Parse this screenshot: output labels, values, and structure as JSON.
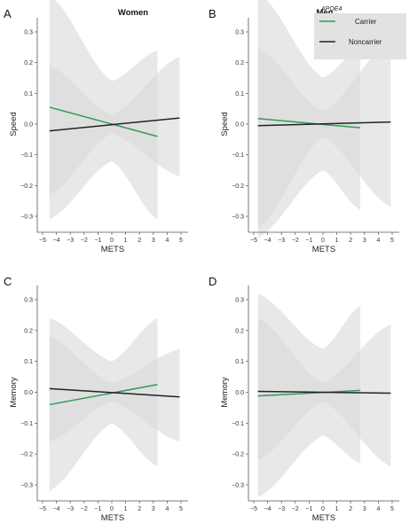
{
  "legend": {
    "title": "APOE4",
    "entries": [
      {
        "label": "Carrier",
        "color": "#2e9c5a"
      },
      {
        "label": "Noncarrier",
        "color": "#222222"
      }
    ],
    "band_color": "#d8d8d8"
  },
  "chart_data": [
    {
      "panel": "A",
      "type": "line",
      "title": "Women",
      "xlabel": "METS",
      "ylabel": "Speed",
      "xlim": [
        -5,
        5
      ],
      "ylim": [
        -0.3,
        0.3
      ],
      "xticks": [
        "−5",
        "−4",
        "−3",
        "−2",
        "−1",
        "0",
        "1",
        "2",
        "3",
        "4",
        "5"
      ],
      "yticks": [
        "−0.3",
        "−0.2",
        "−0.1",
        "0.0",
        "0.1",
        "0.2",
        "0.3"
      ],
      "series": [
        {
          "name": "Carrier",
          "x": [
            -4.5,
            3.3
          ],
          "y": [
            0.055,
            -0.04
          ],
          "band_x": [
            -4.5,
            0,
            3.3
          ],
          "band_lo": [
            -0.31,
            -0.12,
            -0.31
          ],
          "band_hi": [
            0.42,
            0.14,
            0.24
          ]
        },
        {
          "name": "Noncarrier",
          "x": [
            -4.5,
            4.9
          ],
          "y": [
            -0.022,
            0.02
          ],
          "band_x": [
            -4.5,
            0,
            4.9
          ],
          "band_lo": [
            -0.23,
            -0.03,
            -0.17
          ],
          "band_hi": [
            0.19,
            0.03,
            0.22
          ]
        }
      ]
    },
    {
      "panel": "B",
      "type": "line",
      "title": "Men",
      "xlabel": "METS",
      "ylabel": "Speed",
      "xlim": [
        -5,
        5
      ],
      "ylim": [
        -0.3,
        0.3
      ],
      "xticks": [
        "−5",
        "−4",
        "−3",
        "−2",
        "−1",
        "0",
        "1",
        "2",
        "3",
        "4",
        "5"
      ],
      "yticks": [
        "−0.3",
        "−0.2",
        "−0.1",
        "0.0",
        "0.1",
        "0.2",
        "0.3"
      ],
      "series": [
        {
          "name": "Carrier",
          "x": [
            -4.7,
            2.7
          ],
          "y": [
            0.018,
            -0.012
          ],
          "band_x": [
            -4.7,
            0,
            2.7
          ],
          "band_lo": [
            -0.37,
            -0.15,
            -0.28
          ],
          "band_hi": [
            0.43,
            0.15,
            0.25
          ]
        },
        {
          "name": "Noncarrier",
          "x": [
            -4.7,
            4.9
          ],
          "y": [
            -0.005,
            0.007
          ],
          "band_x": [
            -4.7,
            0,
            4.9
          ],
          "band_lo": [
            -0.34,
            -0.04,
            -0.27
          ],
          "band_hi": [
            0.25,
            0.04,
            0.27
          ]
        }
      ]
    },
    {
      "panel": "C",
      "type": "line",
      "title": "",
      "xlabel": "METS",
      "ylabel": "Memory",
      "xlim": [
        -5,
        5
      ],
      "ylim": [
        -0.3,
        0.3
      ],
      "xticks": [
        "−5",
        "−4",
        "−3",
        "−2",
        "−1",
        "0",
        "1",
        "2",
        "3",
        "4",
        "5"
      ],
      "yticks": [
        "−0.3",
        "−0.2",
        "−0.1",
        "0.0",
        "0.1",
        "0.2",
        "0.3"
      ],
      "series": [
        {
          "name": "Carrier",
          "x": [
            -4.5,
            3.3
          ],
          "y": [
            -0.04,
            0.025
          ],
          "band_x": [
            -4.5,
            0,
            3.3
          ],
          "band_lo": [
            -0.32,
            -0.1,
            -0.24
          ],
          "band_hi": [
            0.24,
            0.1,
            0.24
          ]
        },
        {
          "name": "Noncarrier",
          "x": [
            -4.5,
            4.9
          ],
          "y": [
            0.012,
            -0.015
          ],
          "band_x": [
            -4.5,
            0,
            4.9
          ],
          "band_lo": [
            -0.16,
            -0.03,
            -0.16
          ],
          "band_hi": [
            0.18,
            0.03,
            0.14
          ]
        }
      ]
    },
    {
      "panel": "D",
      "type": "line",
      "title": "",
      "xlabel": "METS",
      "ylabel": "Memory",
      "xlim": [
        -5,
        5
      ],
      "ylim": [
        -0.3,
        0.3
      ],
      "xticks": [
        "−5",
        "−4",
        "−3",
        "−2",
        "−1",
        "0",
        "1",
        "2",
        "3",
        "4",
        "5"
      ],
      "yticks": [
        "−0.3",
        "−0.2",
        "−0.1",
        "0.0",
        "0.1",
        "0.2",
        "0.3"
      ],
      "series": [
        {
          "name": "Carrier",
          "x": [
            -4.7,
            2.7
          ],
          "y": [
            -0.012,
            0.006
          ],
          "band_x": [
            -4.7,
            0,
            2.7
          ],
          "band_lo": [
            -0.34,
            -0.14,
            -0.23
          ],
          "band_hi": [
            0.32,
            0.14,
            0.28
          ]
        },
        {
          "name": "Noncarrier",
          "x": [
            -4.7,
            4.9
          ],
          "y": [
            0.003,
            -0.003
          ],
          "band_x": [
            -4.7,
            0,
            4.9
          ],
          "band_lo": [
            -0.22,
            -0.03,
            -0.24
          ],
          "band_hi": [
            0.24,
            0.03,
            0.22
          ]
        }
      ]
    }
  ]
}
